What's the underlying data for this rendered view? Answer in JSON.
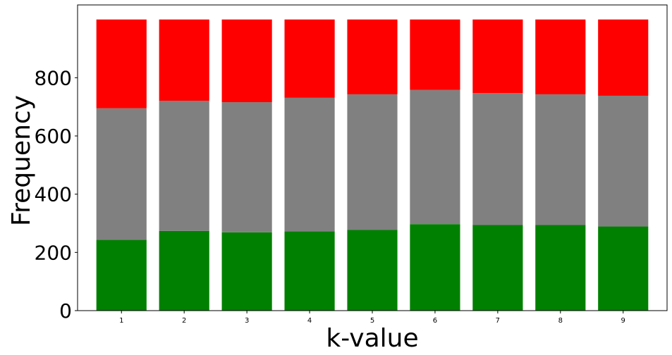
{
  "chart_data": {
    "type": "bar",
    "stacked": true,
    "title": "",
    "xlabel": "k-value",
    "ylabel": "Frequency",
    "categories": [
      "1",
      "2",
      "3",
      "4",
      "5",
      "6",
      "7",
      "8",
      "9"
    ],
    "ylim": [
      0,
      1050
    ],
    "yticks": [
      "0",
      "200",
      "400",
      "600",
      "800"
    ],
    "grid": false,
    "legend": "none",
    "series": [
      {
        "color": "#008000",
        "values": [
          243,
          274,
          269,
          272,
          277,
          297,
          294,
          294,
          289
        ]
      },
      {
        "color": "#808080",
        "values": [
          452,
          447,
          447,
          459,
          466,
          461,
          453,
          449,
          449
        ]
      },
      {
        "color": "#ff0000",
        "values": [
          305,
          279,
          284,
          269,
          257,
          242,
          253,
          257,
          262
        ]
      }
    ]
  }
}
